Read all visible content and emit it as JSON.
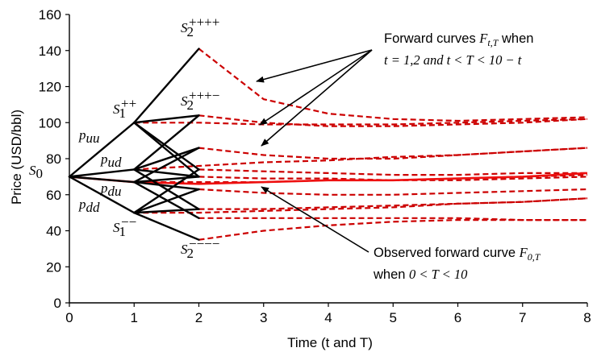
{
  "chart_data": {
    "type": "line",
    "ylabel": "Price (USD/bbl)",
    "xlabel": "Time (t and T)",
    "xlim": [
      0,
      8
    ],
    "ylim": [
      0,
      160
    ],
    "x_ticks": [
      "0",
      "1",
      "2",
      "3",
      "4",
      "5",
      "6",
      "7",
      "8"
    ],
    "y_ticks": [
      "0",
      "20",
      "40",
      "60",
      "80",
      "100",
      "120",
      "140",
      "160"
    ],
    "grid": false,
    "legend": "none",
    "colors": {
      "tree": "#000000",
      "forward": "#cc0000",
      "observed": "#ee1111"
    },
    "tree": {
      "nodes": [
        {
          "t": 0,
          "S": 70
        },
        {
          "t": 1,
          "S": 100
        },
        {
          "t": 1,
          "S": 74
        },
        {
          "t": 1,
          "S": 67
        },
        {
          "t": 1,
          "S": 50
        },
        {
          "t": 2,
          "S": 141
        },
        {
          "t": 2,
          "S": 104
        },
        {
          "t": 2,
          "S": 86
        },
        {
          "t": 2,
          "S": 74
        },
        {
          "t": 2,
          "S": 70
        },
        {
          "t": 2,
          "S": 63
        },
        {
          "t": 2,
          "S": 52
        },
        {
          "t": 2,
          "S": 47
        },
        {
          "t": 2,
          "S": 35
        }
      ],
      "edges": [
        [
          [
            0,
            70
          ],
          [
            1,
            100
          ]
        ],
        [
          [
            0,
            70
          ],
          [
            1,
            74
          ]
        ],
        [
          [
            0,
            70
          ],
          [
            1,
            67
          ]
        ],
        [
          [
            0,
            70
          ],
          [
            1,
            50
          ]
        ],
        [
          [
            1,
            100
          ],
          [
            2,
            141
          ]
        ],
        [
          [
            1,
            100
          ],
          [
            2,
            104
          ]
        ],
        [
          [
            1,
            100
          ],
          [
            2,
            74
          ]
        ],
        [
          [
            1,
            100
          ],
          [
            2,
            70
          ]
        ],
        [
          [
            1,
            74
          ],
          [
            2,
            104
          ]
        ],
        [
          [
            1,
            74
          ],
          [
            2,
            86
          ]
        ],
        [
          [
            1,
            74
          ],
          [
            2,
            70
          ]
        ],
        [
          [
            1,
            74
          ],
          [
            2,
            52
          ]
        ],
        [
          [
            1,
            67
          ],
          [
            2,
            86
          ]
        ],
        [
          [
            1,
            67
          ],
          [
            2,
            70
          ]
        ],
        [
          [
            1,
            67
          ],
          [
            2,
            63
          ]
        ],
        [
          [
            1,
            67
          ],
          [
            2,
            47
          ]
        ],
        [
          [
            1,
            50
          ],
          [
            2,
            74
          ]
        ],
        [
          [
            1,
            50
          ],
          [
            2,
            63
          ]
        ],
        [
          [
            1,
            50
          ],
          [
            2,
            52
          ]
        ],
        [
          [
            1,
            50
          ],
          [
            2,
            35
          ]
        ]
      ]
    },
    "forward_curves": [
      {
        "t": 1,
        "x": [
          1,
          2,
          3,
          4,
          5,
          6,
          7,
          8
        ],
        "y": [
          100,
          100,
          99,
          99,
          99,
          100,
          101,
          102
        ]
      },
      {
        "t": 1,
        "x": [
          1,
          2,
          3,
          4,
          5,
          6,
          7,
          8
        ],
        "y": [
          74,
          76,
          78,
          79,
          81,
          82,
          84,
          86
        ]
      },
      {
        "t": 1,
        "x": [
          1,
          2,
          3,
          4,
          5,
          6,
          7,
          8
        ],
        "y": [
          67,
          67,
          67,
          68,
          68,
          69,
          70,
          71
        ]
      },
      {
        "t": 1,
        "x": [
          1,
          2,
          3,
          4,
          5,
          6,
          7,
          8
        ],
        "y": [
          50,
          50,
          51,
          52,
          53,
          55,
          56,
          58
        ]
      },
      {
        "t": 2,
        "x": [
          2,
          3,
          4,
          5,
          6,
          7,
          8
        ],
        "y": [
          141,
          113,
          105,
          102,
          101,
          102,
          103
        ]
      },
      {
        "t": 2,
        "x": [
          2,
          3,
          4,
          5,
          6,
          7,
          8
        ],
        "y": [
          104,
          100,
          98,
          98,
          99,
          100,
          102
        ]
      },
      {
        "t": 2,
        "x": [
          2,
          3,
          4,
          5,
          6,
          7,
          8
        ],
        "y": [
          86,
          82,
          80,
          80,
          82,
          84,
          86
        ]
      },
      {
        "t": 2,
        "x": [
          2,
          3,
          4,
          5,
          6,
          7,
          8
        ],
        "y": [
          74,
          73,
          72,
          71,
          71,
          72,
          72
        ]
      },
      {
        "t": 2,
        "x": [
          2,
          3,
          4,
          5,
          6,
          7,
          8
        ],
        "y": [
          70,
          69,
          69,
          68,
          68,
          69,
          70
        ]
      },
      {
        "t": 2,
        "x": [
          2,
          3,
          4,
          5,
          6,
          7,
          8
        ],
        "y": [
          63,
          61,
          60,
          60,
          61,
          62,
          63
        ]
      },
      {
        "t": 2,
        "x": [
          2,
          3,
          4,
          5,
          6,
          7,
          8
        ],
        "y": [
          52,
          52,
          53,
          54,
          55,
          56,
          58
        ]
      },
      {
        "t": 2,
        "x": [
          2,
          3,
          4,
          5,
          6,
          7,
          8
        ],
        "y": [
          47,
          47,
          47,
          47,
          47,
          46,
          46
        ]
      },
      {
        "t": 2,
        "x": [
          2,
          3,
          4,
          5,
          6,
          7,
          8
        ],
        "y": [
          35,
          40,
          43,
          45,
          46,
          46,
          46
        ]
      }
    ],
    "observed_curve": {
      "x": [
        0,
        1,
        2,
        3,
        4,
        5,
        6,
        7,
        8
      ],
      "y": [
        70,
        67,
        66,
        67,
        68,
        68,
        69,
        70,
        72
      ]
    },
    "labels": {
      "s0": "S",
      "s0_sub": "0",
      "s1pp": "S",
      "s1pp_sub": "1",
      "s1pp_sup": "++",
      "s1mm": "S",
      "s1mm_sub": "1",
      "s1mm_sup": "−−",
      "s2pppp": "S",
      "s2pppp_sub": "2",
      "s2pppp_sup": "++++",
      "s2pppm": "S",
      "s2pppm_sub": "2",
      "s2pppm_sup": "+++−",
      "s2mmmm": "S",
      "s2mmmm_sub": "2",
      "s2mmmm_sup": "−−−−",
      "puu": "p",
      "puu_sub": "uu",
      "pud": "p",
      "pud_sub": "ud",
      "pdu": "p",
      "pdu_sub": "du",
      "pdd": "p",
      "pdd_sub": "dd"
    },
    "annotations": {
      "forward_line1_text": "Forward curves ",
      "forward_line1_math": "F",
      "forward_line1_sub": "t,T",
      "forward_line1_tail": " when",
      "forward_line2_math": "t = 1,2 and t < T < 10 − t",
      "observed_line1_text": "Observed forward curve ",
      "observed_line1_math": "F",
      "observed_line1_sub": "0,T",
      "observed_line2_text": "when ",
      "observed_line2_math": "0 < T < 10"
    }
  }
}
